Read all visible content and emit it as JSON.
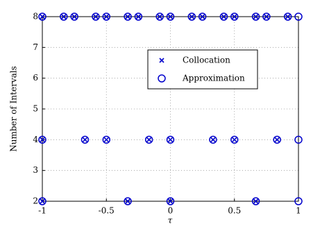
{
  "chart_data": {
    "type": "scatter",
    "xlabel": "τ",
    "ylabel": "Number of Intervals",
    "xlim": [
      -1,
      1
    ],
    "xticks": [
      -1,
      -0.5,
      0,
      0.5,
      1
    ],
    "ylim": [
      2,
      8
    ],
    "yticks": [
      2,
      3,
      4,
      5,
      6,
      7,
      8
    ],
    "grid": true,
    "legend": "upper center",
    "series": [
      {
        "name": "Collocation",
        "color": "#0000cc",
        "marker": "x",
        "x": [
          -1,
          -0.833,
          -0.75,
          -0.583,
          -0.5,
          -0.333,
          -0.25,
          -0.083,
          0,
          0.167,
          0.25,
          0.417,
          0.5,
          0.667,
          0.75,
          0.917,
          -1,
          -0.667,
          -0.5,
          -0.167,
          0,
          0.333,
          0.5,
          0.833,
          -1,
          -0.333,
          0,
          0.667
        ],
        "values": [
          8,
          8,
          8,
          8,
          8,
          8,
          8,
          8,
          8,
          8,
          8,
          8,
          8,
          8,
          8,
          8,
          4,
          4,
          4,
          4,
          4,
          4,
          4,
          4,
          2,
          2,
          2,
          2
        ]
      },
      {
        "name": "Approximation",
        "color": "#0000cc",
        "marker": "o",
        "x": [
          -1,
          -0.833,
          -0.75,
          -0.583,
          -0.5,
          -0.333,
          -0.25,
          -0.083,
          0,
          0.167,
          0.25,
          0.417,
          0.5,
          0.667,
          0.75,
          0.917,
          1,
          -1,
          -0.667,
          -0.5,
          -0.167,
          0,
          0.333,
          0.5,
          0.833,
          1,
          -1,
          -0.333,
          0,
          0.667,
          1
        ],
        "values": [
          8,
          8,
          8,
          8,
          8,
          8,
          8,
          8,
          8,
          8,
          8,
          8,
          8,
          8,
          8,
          8,
          8,
          4,
          4,
          4,
          4,
          4,
          4,
          4,
          4,
          4,
          2,
          2,
          2,
          2,
          2
        ]
      }
    ]
  }
}
